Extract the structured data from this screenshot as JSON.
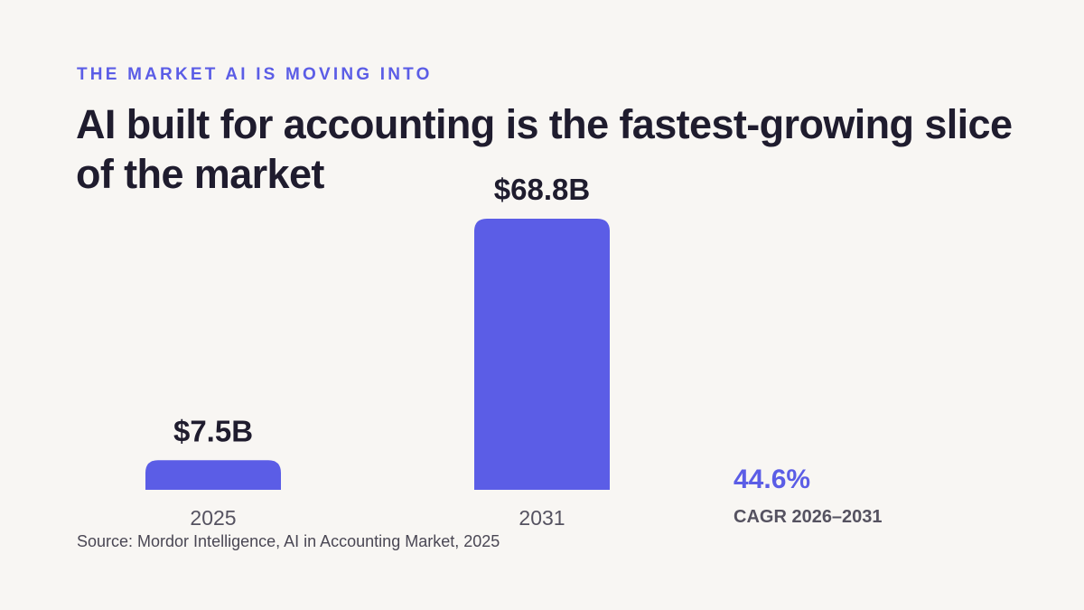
{
  "eyebrow": "THE MARKET AI IS MOVING INTO",
  "title": "AI built for accounting is the fastest-growing slice of the market",
  "chart_data": {
    "type": "bar",
    "categories": [
      "2025",
      "2031"
    ],
    "values": [
      7.5,
      68.8
    ],
    "value_labels": [
      "$7.5B",
      "$68.8B"
    ],
    "unit": "billion USD",
    "ylim": [
      0,
      68.8
    ],
    "grid": false,
    "legend": "none"
  },
  "stat": {
    "value": "44.6%",
    "label": "CAGR 2026–2031"
  },
  "source": "Source: Mordor Intelligence, AI in Accounting Market, 2025",
  "colors": {
    "accent": "#5b5de6",
    "text": "#1f1c2e",
    "muted": "#555260",
    "background": "#f8f6f3"
  }
}
